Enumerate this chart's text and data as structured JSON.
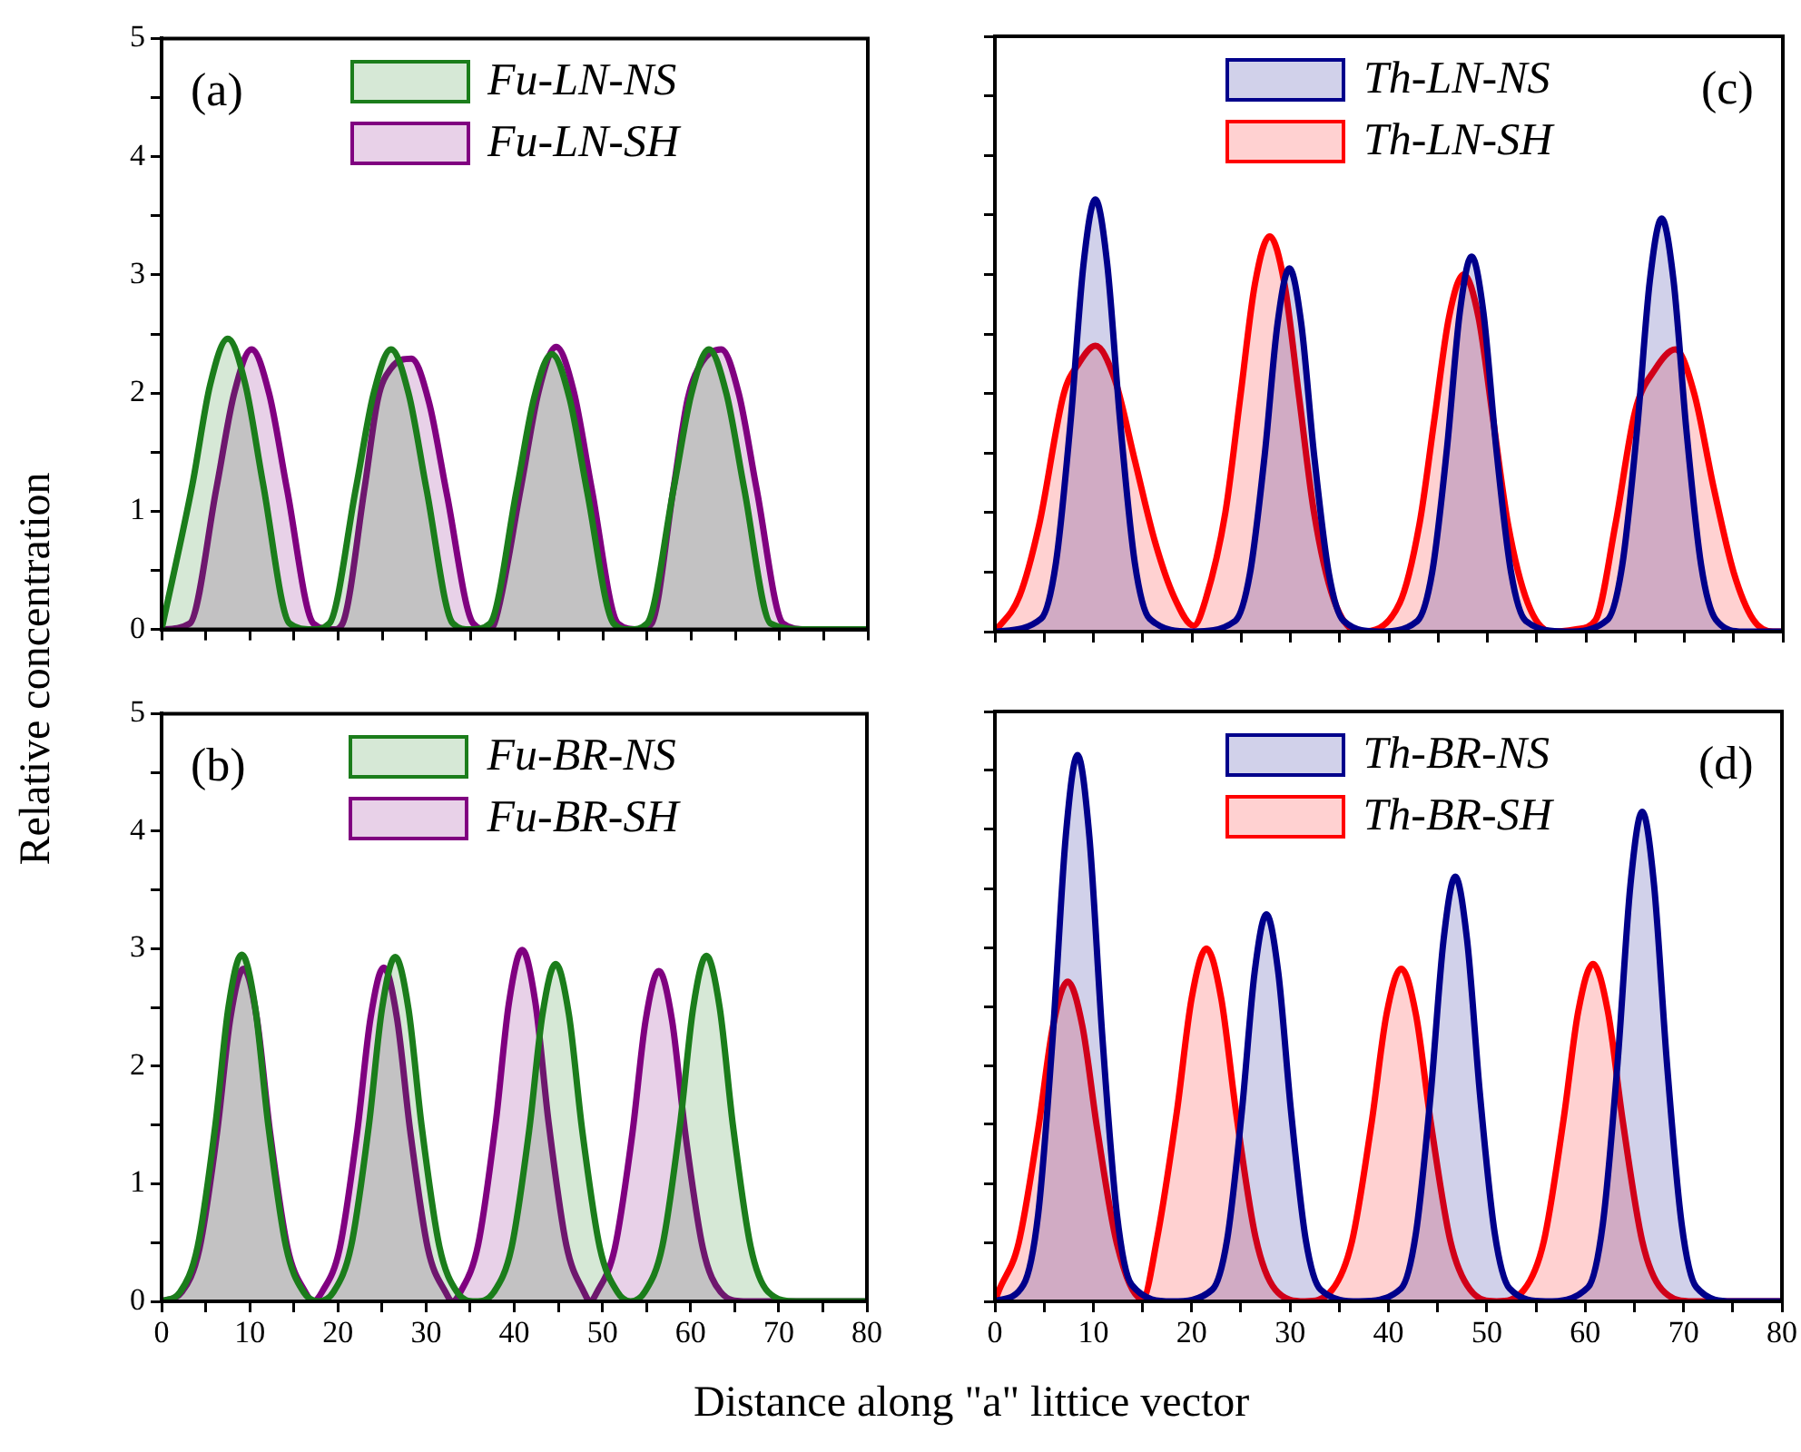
{
  "chart_data": [
    {
      "type": "area",
      "ylabel": "Relative concentration",
      "annotations": [
        "(a)"
      ],
      "legend": "top",
      "tick_labels": "y",
      "marker": "none",
      "line_style": "solid",
      "xlim": [
        0,
        80
      ],
      "xticks": [
        0,
        {
          "value": 5,
          "label": null
        },
        10,
        {
          "value": 15,
          "label": null
        },
        20,
        {
          "value": 25,
          "label": null
        },
        30,
        {
          "value": 35,
          "label": null
        },
        40,
        {
          "value": 45,
          "label": null
        },
        50,
        {
          "value": 55,
          "label": null
        },
        60,
        {
          "value": 65,
          "label": null
        },
        70,
        {
          "value": 75,
          "label": null
        },
        80
      ],
      "ylim": [
        0,
        5
      ],
      "yticks": [
        0,
        {
          "value": 0.5,
          "label": null
        },
        1,
        {
          "value": 1.5,
          "label": null
        },
        2,
        {
          "value": 2.5,
          "label": null
        },
        3,
        {
          "value": 3.5,
          "label": null
        },
        4,
        {
          "value": 4.5,
          "label": null
        },
        5
      ],
      "series": [
        {
          "name": "Fu-LN-NS",
          "color": "#1b7d1b",
          "x": [
            0,
            3.5,
            5.5,
            7.5,
            9.5,
            11.5,
            14.5,
            17,
            19,
            22,
            24,
            26,
            28,
            30,
            33,
            35,
            37.2,
            40.2,
            42.2,
            44.2,
            46.2,
            48.2,
            51.2,
            53,
            55,
            58,
            60,
            62,
            64,
            66,
            69,
            73,
            80
          ],
          "values": [
            0,
            1.23,
            2.07,
            2.46,
            2.07,
            1.23,
            0.05,
            0,
            0.05,
            1.19,
            1.99,
            2.37,
            1.99,
            1.19,
            0.05,
            0,
            0.05,
            1.17,
            1.96,
            2.33,
            1.96,
            1.17,
            0.05,
            0,
            0.05,
            1.19,
            1.99,
            2.37,
            1.99,
            1.19,
            0.05,
            0,
            0
          ]
        },
        {
          "name": "Fu-LN-SH",
          "color": "#800080",
          "x": [
            0,
            3.2,
            6.2,
            8.2,
            10.2,
            12.2,
            14.2,
            17.2,
            19.5,
            20.5,
            23,
            24.5,
            26,
            28.3,
            30.3,
            32.3,
            35.3,
            37,
            37.7,
            40.7,
            42.7,
            44.7,
            46.7,
            48.7,
            51.7,
            54,
            55.5,
            58,
            59.6,
            61.2,
            63.4,
            65.4,
            67.4,
            70.4,
            73,
            80
          ],
          "values": [
            0,
            0.05,
            1.19,
            1.99,
            2.37,
            1.99,
            1.19,
            0.05,
            0,
            0.05,
            1.2,
            1.95,
            2.21,
            2.29,
            1.92,
            1.15,
            0.05,
            0,
            0.05,
            1.2,
            2.01,
            2.39,
            2.01,
            1.2,
            0.05,
            0,
            0.05,
            1.2,
            1.95,
            2.26,
            2.37,
            1.99,
            1.19,
            0.05,
            0,
            0
          ]
        }
      ]
    },
    {
      "type": "area",
      "annotations": [
        "(c)"
      ],
      "legend": "top",
      "tick_labels": false,
      "marker": "none",
      "line_style": "solid",
      "xlim": [
        0,
        80
      ],
      "xticks": [
        0,
        {
          "value": 5,
          "label": null
        },
        10,
        {
          "value": 15,
          "label": null
        },
        20,
        {
          "value": 25,
          "label": null
        },
        30,
        {
          "value": 35,
          "label": null
        },
        40,
        {
          "value": 45,
          "label": null
        },
        50,
        {
          "value": 55,
          "label": null
        },
        60,
        {
          "value": 65,
          "label": null
        },
        70,
        {
          "value": 75,
          "label": null
        },
        80
      ],
      "ylim": [
        0,
        5
      ],
      "yticks": [
        0,
        {
          "value": 0.5,
          "label": null
        },
        1,
        {
          "value": 1.5,
          "label": null
        },
        2,
        {
          "value": 2.5,
          "label": null
        },
        3,
        {
          "value": 3.5,
          "label": null
        },
        4,
        {
          "value": 4.5,
          "label": null
        },
        5
      ],
      "series": [
        {
          "name": "Th-LN-NS",
          "color": "#00008b",
          "x": [
            0,
            4.7,
            6.2,
            7.7,
            9,
            10.2,
            11.4,
            12.7,
            14.2,
            15.7,
            20,
            24.4,
            25.9,
            27.4,
            28.7,
            29.9,
            31.1,
            32.4,
            33.9,
            35.4,
            39,
            42.9,
            44.4,
            45.9,
            47.2,
            48.4,
            49.6,
            50.9,
            52.4,
            53.9,
            58,
            62.2,
            63.7,
            65.2,
            66.5,
            67.7,
            68.9,
            70.2,
            71.7,
            73.2,
            76,
            80
          ],
          "values": [
            0,
            0.11,
            0.58,
            1.78,
            3.09,
            3.63,
            3.09,
            1.78,
            0.58,
            0.11,
            0,
            0.09,
            0.49,
            1.49,
            2.59,
            3.05,
            2.59,
            1.49,
            0.49,
            0.09,
            0,
            0.09,
            0.5,
            1.54,
            2.68,
            3.15,
            2.68,
            1.54,
            0.5,
            0.09,
            0,
            0.1,
            0.56,
            1.7,
            2.95,
            3.47,
            2.95,
            1.7,
            0.56,
            0.1,
            0,
            0
          ]
        },
        {
          "name": "Th-LN-SH",
          "color": "#ff0000",
          "x": [
            0,
            2.5,
            4.5,
            7,
            8.5,
            10.2,
            12.2,
            14.2,
            16.2,
            18.2,
            20.2,
            21.4,
            23.4,
            24.9,
            26.4,
            27.9,
            29.4,
            30.9,
            32.4,
            34.4,
            37,
            41.1,
            43.1,
            44.6,
            46.1,
            47.6,
            49.1,
            50.6,
            52.1,
            54.1,
            56.5,
            59,
            61,
            63,
            65,
            67,
            69.1,
            71,
            73,
            75,
            77,
            79,
            80
          ],
          "values": [
            0,
            0.3,
            0.9,
            2.0,
            2.25,
            2.4,
            2.11,
            1.44,
            0.77,
            0.29,
            0.05,
            0.27,
            1.0,
            1.96,
            2.92,
            3.32,
            2.92,
            1.96,
            1.0,
            0.27,
            0,
            0.24,
            0.9,
            1.77,
            2.64,
            3.0,
            2.64,
            1.77,
            0.9,
            0.24,
            0,
            0.02,
            0.1,
            0.9,
            1.85,
            2.2,
            2.37,
            2.0,
            1.2,
            0.5,
            0.1,
            0,
            0
          ]
        }
      ]
    },
    {
      "type": "area",
      "xlabel": "Distance along \"a\" littice vector",
      "annotations": [
        "(b)"
      ],
      "legend": "top",
      "marker": "none",
      "line_style": "solid",
      "xlim": [
        0,
        80
      ],
      "xticks": [
        0,
        {
          "value": 5,
          "label": null
        },
        10,
        {
          "value": 15,
          "label": null
        },
        20,
        {
          "value": 25,
          "label": null
        },
        30,
        {
          "value": 35,
          "label": null
        },
        40,
        {
          "value": 45,
          "label": null
        },
        50,
        {
          "value": 55,
          "label": null
        },
        60,
        {
          "value": 65,
          "label": null
        },
        70,
        {
          "value": 75,
          "label": null
        },
        80
      ],
      "ylim": [
        0,
        5
      ],
      "yticks": [
        0,
        {
          "value": 0.5,
          "label": null
        },
        1,
        {
          "value": 1.5,
          "label": null
        },
        2,
        {
          "value": 2.5,
          "label": null
        },
        3,
        {
          "value": 3.5,
          "label": null
        },
        4,
        {
          "value": 4.5,
          "label": null
        },
        5
      ],
      "series": [
        {
          "name": "Fu-BR-NS",
          "color": "#1b7d1b",
          "x": [
            0,
            2.1,
            4.1,
            6.1,
            7.6,
            9.1,
            10.6,
            12.1,
            14.1,
            16.1,
            17.8,
            19.5,
            21.5,
            23.5,
            25,
            26.5,
            28,
            29.5,
            31.5,
            33.5,
            35.6,
            37.7,
            39.7,
            41.7,
            43.2,
            44.7,
            46.2,
            47.7,
            49.7,
            51.7,
            53.2,
            54.8,
            56.8,
            58.8,
            60.3,
            61.8,
            63.3,
            64.8,
            66.8,
            68.8,
            72,
            80
          ],
          "values": [
            0,
            0.08,
            0.47,
            1.5,
            2.51,
            2.95,
            2.51,
            1.5,
            0.47,
            0.08,
            0,
            0.08,
            0.47,
            1.49,
            2.49,
            2.93,
            2.49,
            1.49,
            0.47,
            0.08,
            0,
            0.08,
            0.46,
            1.46,
            2.44,
            2.87,
            2.44,
            1.46,
            0.46,
            0.08,
            0,
            0.08,
            0.47,
            1.5,
            2.5,
            2.94,
            2.5,
            1.5,
            0.47,
            0.08,
            0,
            0
          ]
        },
        {
          "name": "Fu-BR-SH",
          "color": "#800080",
          "x": [
            0,
            2.3,
            4.3,
            6.3,
            7.8,
            9.3,
            10.8,
            12.3,
            14.3,
            16.3,
            17.2,
            18.2,
            20.2,
            22.2,
            23.7,
            25.2,
            26.7,
            28.2,
            30.2,
            32.2,
            33,
            33.9,
            35.9,
            37.9,
            39.4,
            40.9,
            42.4,
            43.9,
            45.9,
            47.9,
            48.6,
            49.4,
            51.4,
            53.4,
            54.9,
            56.4,
            57.9,
            59.4,
            61.4,
            63.4,
            66,
            80
          ],
          "values": [
            0,
            0.08,
            0.45,
            1.44,
            2.41,
            2.83,
            2.41,
            1.44,
            0.45,
            0.08,
            0,
            0.08,
            0.45,
            1.45,
            2.41,
            2.84,
            2.41,
            1.45,
            0.45,
            0.08,
            0,
            0.08,
            0.48,
            1.52,
            2.54,
            2.99,
            2.54,
            1.52,
            0.48,
            0.08,
            0,
            0.08,
            0.45,
            1.43,
            2.39,
            2.81,
            2.39,
            1.43,
            0.45,
            0.08,
            0,
            0
          ]
        }
      ]
    },
    {
      "type": "area",
      "annotations": [
        "(d)"
      ],
      "legend": "top",
      "tick_labels": "x",
      "marker": "none",
      "line_style": "solid",
      "xlim": [
        0,
        80
      ],
      "xticks": [
        0,
        {
          "value": 5,
          "label": null
        },
        10,
        {
          "value": 15,
          "label": null
        },
        20,
        {
          "value": 25,
          "label": null
        },
        30,
        {
          "value": 35,
          "label": null
        },
        40,
        {
          "value": 45,
          "label": null
        },
        50,
        {
          "value": 55,
          "label": null
        },
        60,
        {
          "value": 65,
          "label": null
        },
        70,
        {
          "value": 75,
          "label": null
        },
        80
      ],
      "ylim": [
        0,
        5
      ],
      "yticks": [
        0,
        {
          "value": 0.5,
          "label": null
        },
        1,
        {
          "value": 1.5,
          "label": null
        },
        2,
        {
          "value": 2.5,
          "label": null
        },
        3,
        {
          "value": 3.5,
          "label": null
        },
        4,
        {
          "value": 4.5,
          "label": null
        },
        5
      ],
      "series": [
        {
          "name": "Th-BR-NS",
          "color": "#00008b",
          "x": [
            0,
            2.9,
            4.4,
            5.9,
            7.2,
            8.4,
            9.6,
            10.9,
            12.4,
            13.9,
            18,
            22.1,
            23.6,
            25.1,
            26.4,
            27.6,
            28.8,
            30.1,
            31.6,
            33.1,
            37,
            41.3,
            42.8,
            44.3,
            45.6,
            46.8,
            48,
            49.3,
            50.8,
            52.3,
            56,
            60.3,
            61.8,
            63.3,
            64.6,
            65.8,
            67,
            68.3,
            69.8,
            71.3,
            75,
            80
          ],
          "values": [
            0,
            0.14,
            0.74,
            2.27,
            3.94,
            4.63,
            3.94,
            2.27,
            0.74,
            0.14,
            0,
            0.1,
            0.52,
            1.61,
            2.79,
            3.28,
            2.79,
            1.61,
            0.52,
            0.1,
            0,
            0.11,
            0.58,
            1.76,
            3.06,
            3.6,
            3.06,
            1.76,
            0.58,
            0.11,
            0,
            0.12,
            0.66,
            2.03,
            3.53,
            4.15,
            3.53,
            2.03,
            0.66,
            0.12,
            0,
            0
          ]
        },
        {
          "name": "Th-BR-SH",
          "color": "#ff0000",
          "x": [
            0,
            0.4,
            2.4,
            4.4,
            5.9,
            7.4,
            8.9,
            10.4,
            12.4,
            15,
            16.5,
            18.5,
            20,
            21.5,
            23,
            24.5,
            26.5,
            28.5,
            31.5,
            34.3,
            36.3,
            38.3,
            39.8,
            41.3,
            42.8,
            44.3,
            46.3,
            48.3,
            51,
            53.8,
            55.8,
            57.8,
            59.3,
            60.8,
            62.3,
            63.8,
            65.8,
            67.8,
            71,
            80
          ],
          "values": [
            0,
            0.09,
            0.49,
            1.46,
            2.33,
            2.71,
            2.33,
            1.46,
            0.49,
            0.02,
            0.54,
            1.61,
            2.57,
            2.99,
            2.57,
            1.61,
            0.54,
            0.1,
            0,
            0.1,
            0.51,
            1.52,
            2.43,
            2.82,
            2.43,
            1.52,
            0.51,
            0.1,
            0,
            0.1,
            0.51,
            1.54,
            2.46,
            2.86,
            2.46,
            1.54,
            0.51,
            0.1,
            0,
            0
          ]
        }
      ]
    }
  ]
}
